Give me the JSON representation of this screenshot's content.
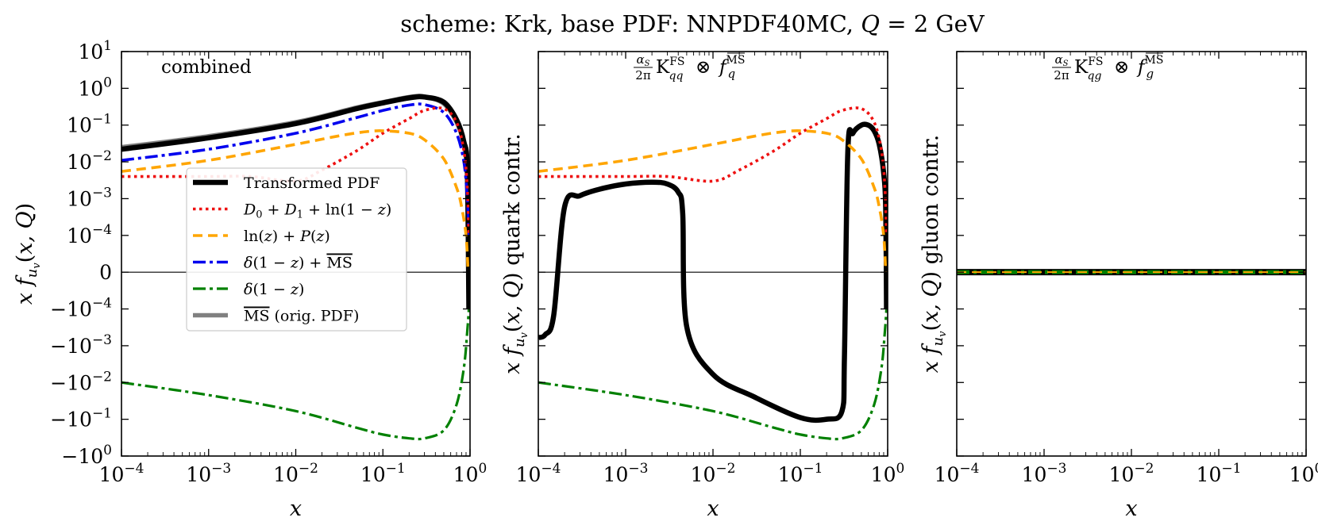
{
  "title": "scheme: Krk, base PDF: NNPDF40MC, Q = 2 GeV",
  "colors": {
    "transformed": "#000000",
    "d0d1": "#ee1111",
    "lnz": "#ffa500",
    "delta_msbar": "#0000ee",
    "delta": "#008000",
    "msbar": "#808080"
  },
  "chart_data": [
    {
      "type": "line",
      "panel": "combined",
      "annotation": "combined",
      "xlabel": "x",
      "ylabel": "x f_{u_v}(x, Q)",
      "xscale": "log",
      "yscale": "symlog",
      "xlim": [
        0.0001,
        1
      ],
      "ylim": [
        -1,
        10
      ],
      "x_tick_labels": [
        "10^-4",
        "10^-3",
        "10^-2",
        "10^-1",
        "10^0"
      ],
      "y_tick_labels": [
        "10^1",
        "10^0",
        "10^-1",
        "10^-2",
        "10^-3",
        "10^-4",
        "0",
        "-10^-4",
        "-10^-3",
        "-10^-2",
        "-10^-1",
        "-10^0"
      ],
      "legend_position": "center-left",
      "legend": [
        {
          "key": "transformed",
          "label": "Transformed PDF"
        },
        {
          "key": "d0d1",
          "label": "D0 + D1 + ln(1 - z)"
        },
        {
          "key": "lnz",
          "label": "ln(z) + P(z)"
        },
        {
          "key": "delta_msbar",
          "label": "δ(1 - z) + MS-bar"
        },
        {
          "key": "delta",
          "label": "δ(1 - z)"
        },
        {
          "key": "msbar",
          "label": "MS-bar (orig. PDF)"
        }
      ],
      "series": [
        {
          "key": "msbar",
          "name": "MS-bar (orig. PDF)",
          "x": [
            0.0001,
            0.001,
            0.01,
            0.05,
            0.1,
            0.2,
            0.3,
            0.5,
            0.7,
            0.85,
            0.93,
            0.97
          ],
          "y": [
            0.025,
            0.05,
            0.12,
            0.3,
            0.42,
            0.58,
            0.6,
            0.38,
            0.12,
            0.03,
            0.005,
            0.0003
          ]
        },
        {
          "key": "transformed",
          "name": "Transformed PDF",
          "x": [
            0.0001,
            0.001,
            0.01,
            0.05,
            0.1,
            0.2,
            0.3,
            0.5,
            0.7,
            0.85,
            0.93,
            0.97
          ],
          "y": [
            0.022,
            0.045,
            0.11,
            0.28,
            0.4,
            0.55,
            0.58,
            0.42,
            0.14,
            0.035,
            0.006,
            -0.0001
          ]
        },
        {
          "key": "delta_msbar",
          "name": "δ(1-z) + MS-bar",
          "x": [
            0.0001,
            0.001,
            0.01,
            0.05,
            0.1,
            0.2,
            0.3,
            0.5,
            0.7,
            0.85,
            0.93,
            0.97
          ],
          "y": [
            0.011,
            0.022,
            0.06,
            0.16,
            0.25,
            0.35,
            0.36,
            0.22,
            0.06,
            0.01,
            0.001,
            0.0001
          ]
        },
        {
          "key": "d0d1",
          "name": "D0 + D1 + ln(1-z)",
          "x": [
            0.0001,
            0.001,
            0.003,
            0.01,
            0.02,
            0.05,
            0.1,
            0.2,
            0.3,
            0.5,
            0.7,
            0.85,
            0.93,
            0.97
          ],
          "y": [
            0.004,
            0.004,
            0.004,
            0.003,
            0.006,
            0.02,
            0.06,
            0.15,
            0.25,
            0.28,
            0.12,
            0.02,
            0.002,
            0.0001
          ]
        },
        {
          "key": "lnz",
          "name": "ln(z) + P(z)",
          "x": [
            0.0001,
            0.001,
            0.01,
            0.03,
            0.06,
            0.1,
            0.2,
            0.3,
            0.5,
            0.7,
            0.8,
            0.9,
            0.95
          ],
          "y": [
            0.0055,
            0.011,
            0.03,
            0.05,
            0.065,
            0.07,
            0.06,
            0.04,
            0.012,
            0.002,
            0.0006,
            0.0001,
            0
          ]
        },
        {
          "key": "delta",
          "name": "δ(1-z)",
          "x": [
            0.0001,
            0.001,
            0.01,
            0.05,
            0.1,
            0.2,
            0.3,
            0.5,
            0.7,
            0.85,
            0.93,
            0.97
          ],
          "y": [
            -0.01,
            -0.022,
            -0.06,
            -0.17,
            -0.26,
            -0.33,
            -0.33,
            -0.2,
            -0.04,
            -0.004,
            -0.0004,
            -0.0001
          ]
        }
      ]
    },
    {
      "type": "line",
      "panel": "quark",
      "annotation": "(αS/2π) K^FS_qq ⊗ f^MS-bar_q",
      "xlabel": "x",
      "ylabel": "x f_{u_v}(x, Q) quark contr.",
      "xscale": "log",
      "yscale": "symlog",
      "xlim": [
        0.0001,
        1
      ],
      "ylim": [
        -1,
        10
      ],
      "x_tick_labels": [
        "10^-4",
        "10^-3",
        "10^-2",
        "10^-1",
        "10^0"
      ],
      "series": [
        {
          "key": "transformed",
          "name": "Transformed PDF",
          "x": [
            0.0001,
            0.00012,
            0.00015,
            0.0002,
            0.0003,
            0.0005,
            0.001,
            0.002,
            0.003,
            0.004,
            0.0045,
            0.005,
            0.01,
            0.03,
            0.1,
            0.2,
            0.3,
            0.32,
            0.35,
            0.4,
            0.5,
            0.6,
            0.7,
            0.8,
            0.9,
            0.95,
            0.97
          ],
          "y": [
            -0.0006,
            -0.0005,
            -0.00015,
            0.0006,
            0.0012,
            0.0018,
            0.0025,
            0.0028,
            0.0025,
            0.0015,
            0.0004,
            -0.0003,
            -0.006,
            -0.025,
            -0.09,
            -0.1,
            -0.06,
            -0.002,
            0.02,
            0.06,
            0.1,
            0.1,
            0.07,
            0.03,
            0.005,
            0.0005,
            -0.0001
          ]
        },
        {
          "key": "d0d1",
          "name": "D0 + D1 + ln(1-z)",
          "x": [
            0.0001,
            0.001,
            0.003,
            0.01,
            0.02,
            0.05,
            0.1,
            0.2,
            0.3,
            0.5,
            0.7,
            0.85,
            0.93,
            0.97
          ],
          "y": [
            0.004,
            0.004,
            0.004,
            0.003,
            0.006,
            0.02,
            0.06,
            0.15,
            0.25,
            0.28,
            0.12,
            0.02,
            0.002,
            0.0001
          ]
        },
        {
          "key": "lnz",
          "name": "ln(z) + P(z)",
          "x": [
            0.0001,
            0.001,
            0.01,
            0.03,
            0.06,
            0.1,
            0.2,
            0.3,
            0.5,
            0.7,
            0.8,
            0.9,
            0.95
          ],
          "y": [
            0.0055,
            0.011,
            0.03,
            0.05,
            0.065,
            0.07,
            0.06,
            0.04,
            0.012,
            0.002,
            0.0006,
            0.0001,
            0
          ]
        },
        {
          "key": "delta",
          "name": "δ(1-z)",
          "x": [
            0.0001,
            0.001,
            0.01,
            0.05,
            0.1,
            0.2,
            0.3,
            0.5,
            0.7,
            0.85,
            0.93,
            0.97
          ],
          "y": [
            -0.01,
            -0.022,
            -0.06,
            -0.17,
            -0.26,
            -0.33,
            -0.33,
            -0.2,
            -0.04,
            -0.004,
            -0.0004,
            -0.0001
          ]
        }
      ]
    },
    {
      "type": "line",
      "panel": "gluon",
      "annotation": "(αS/2π) K^FS_qg ⊗ f^MS-bar_g",
      "xlabel": "x",
      "ylabel": "x f_{u_v}(x, Q) gluon contr.",
      "xscale": "log",
      "yscale": "symlog",
      "xlim": [
        0.0001,
        1
      ],
      "ylim": [
        -1,
        10
      ],
      "x_tick_labels": [
        "10^-4",
        "10^-3",
        "10^-2",
        "10^-1",
        "10^0"
      ],
      "series": [
        {
          "key": "transformed",
          "name": "Transformed PDF",
          "x": [
            0.0001,
            1
          ],
          "y": [
            0,
            0
          ]
        },
        {
          "key": "delta",
          "name": "δ(1-z)",
          "x": [
            0.0001,
            1
          ],
          "y": [
            0,
            0
          ]
        },
        {
          "key": "lnz",
          "name": "ln(z) + P(z)",
          "x": [
            0.0001,
            1
          ],
          "y": [
            0,
            0
          ]
        }
      ]
    }
  ]
}
